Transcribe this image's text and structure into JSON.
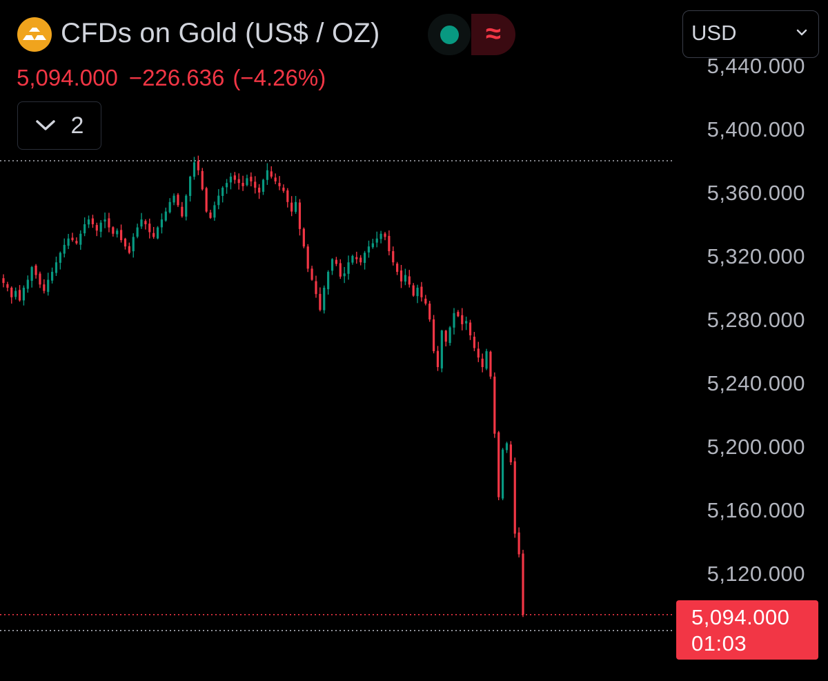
{
  "header": {
    "title": "CFDs on Gold (US$ / OZ)",
    "icon": "gold-bars-icon",
    "status_dot_color": "#089981",
    "delay_badge_symbol": "≈",
    "last_price": "5,094.000",
    "change": "−226.636",
    "change_pct": "(−4.26%)",
    "indicator_count": "2"
  },
  "currency": {
    "selected": "USD"
  },
  "last_price_tag": {
    "price": "5,094.000",
    "countdown": "01:03"
  },
  "colors": {
    "up": "#089981",
    "down": "#f23645",
    "background": "#000000",
    "axis_text": "#b2b5be"
  },
  "chart_data": {
    "type": "candlestick",
    "y_axis_ticks": [
      "5,440.000",
      "5,400.000",
      "5,360.000",
      "5,320.000",
      "5,280.000",
      "5,240.000",
      "5,200.000",
      "5,160.000",
      "5,120.000"
    ],
    "ylim": [
      5080,
      5445
    ],
    "reference_lines": [
      {
        "name": "session-high",
        "price": 5380,
        "color": "#b2b5be",
        "style": "dotted"
      },
      {
        "name": "last-price",
        "price": 5094,
        "color": "#f23645",
        "style": "dotted"
      },
      {
        "name": "session-low",
        "price": 5084,
        "color": "#b2b5be",
        "style": "dotted"
      }
    ],
    "close_path": [
      5303,
      5300,
      5294,
      5298,
      5292,
      5300,
      5305,
      5313,
      5308,
      5302,
      5298,
      5305,
      5310,
      5316,
      5322,
      5327,
      5331,
      5330,
      5328,
      5334,
      5340,
      5343,
      5340,
      5336,
      5341,
      5343,
      5338,
      5334,
      5336,
      5330,
      5326,
      5322,
      5332,
      5338,
      5343,
      5340,
      5335,
      5332,
      5338,
      5343,
      5348,
      5354,
      5358,
      5352,
      5345,
      5358,
      5370,
      5379,
      5374,
      5362,
      5348,
      5344,
      5352,
      5358,
      5363,
      5366,
      5370,
      5368,
      5366,
      5364,
      5369,
      5367,
      5363,
      5360,
      5368,
      5374,
      5370,
      5367,
      5364,
      5361,
      5354,
      5348,
      5354,
      5337,
      5326,
      5312,
      5305,
      5296,
      5286,
      5300,
      5310,
      5318,
      5315,
      5307,
      5309,
      5316,
      5320,
      5318,
      5316,
      5322,
      5326,
      5328,
      5331,
      5334,
      5332,
      5323,
      5316,
      5310,
      5304,
      5308,
      5302,
      5295,
      5300,
      5294,
      5290,
      5280,
      5260,
      5250,
      5273,
      5266,
      5275,
      5284,
      5282,
      5277,
      5279,
      5270,
      5262,
      5256,
      5250,
      5260,
      5244,
      5208,
      5168,
      5198,
      5202,
      5190,
      5145,
      5132,
      5094
    ]
  }
}
